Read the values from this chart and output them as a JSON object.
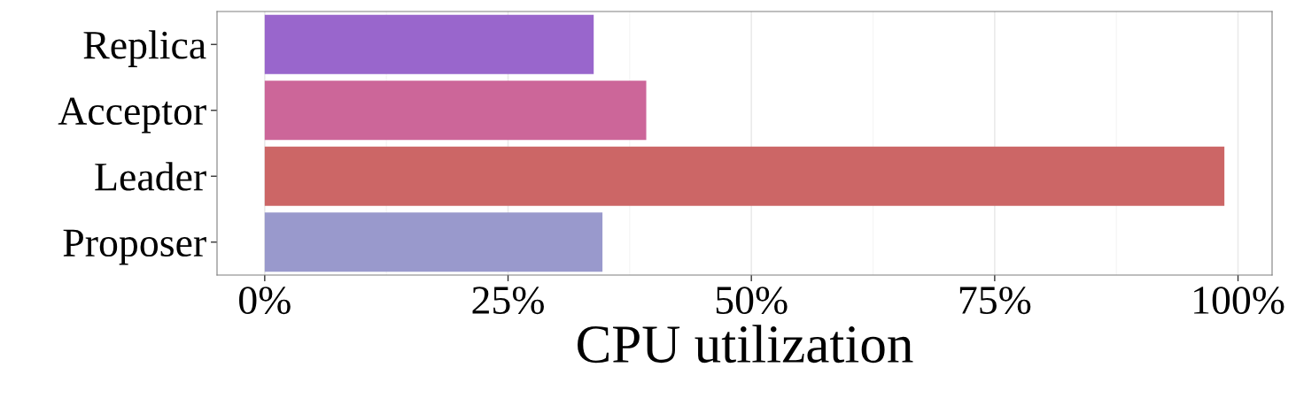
{
  "chart_data": {
    "type": "bar",
    "orientation": "horizontal",
    "xlabel": "CPU utilization",
    "categories": [
      "Replica",
      "Acceptor",
      "Leader",
      "Proposer"
    ],
    "values": [
      33.8,
      39.2,
      98.6,
      34.7
    ],
    "colors": [
      "#9966cc",
      "#cc6699",
      "#cc6666",
      "#9999cc"
    ],
    "xlim": [
      -4.9,
      103.5
    ],
    "xticks": [
      {
        "value": 0,
        "label": "0%"
      },
      {
        "value": 25,
        "label": "25%"
      },
      {
        "value": 50,
        "label": "50%"
      },
      {
        "value": 75,
        "label": "75%"
      },
      {
        "value": 100,
        "label": "100%"
      }
    ],
    "grid": "x",
    "legend": false
  }
}
